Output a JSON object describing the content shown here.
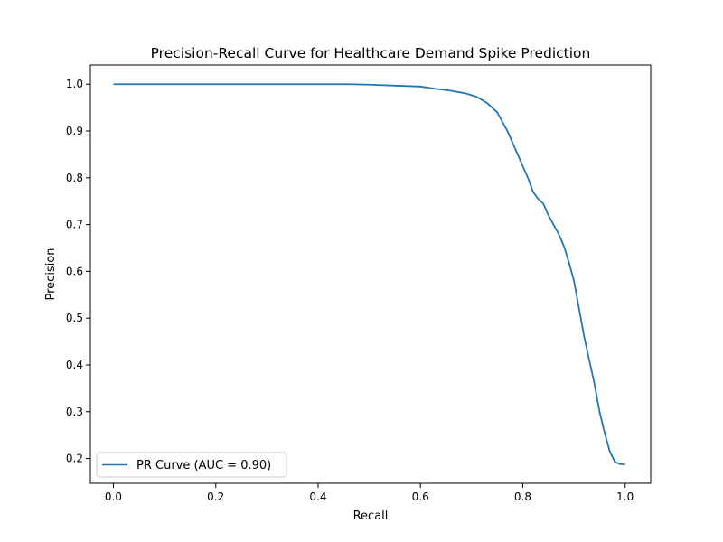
{
  "chart_data": {
    "type": "line",
    "title": "Precision-Recall Curve for Healthcare Demand Spike Prediction",
    "xlabel": "Recall",
    "ylabel": "Precision",
    "xlim": [
      -0.045,
      1.05
    ],
    "ylim": [
      0.147,
      1.041
    ],
    "x_ticks": [
      0.0,
      0.2,
      0.4,
      0.6,
      0.8,
      1.0
    ],
    "y_ticks": [
      0.2,
      0.3,
      0.4,
      0.5,
      0.6,
      0.7,
      0.8,
      0.9,
      1.0
    ],
    "x_tick_labels": [
      "0.0",
      "0.2",
      "0.4",
      "0.6",
      "0.8",
      "1.0"
    ],
    "y_tick_labels": [
      "0.2",
      "0.3",
      "0.4",
      "0.5",
      "0.6",
      "0.7",
      "0.8",
      "0.9",
      "1.0"
    ],
    "grid": false,
    "legend": {
      "position": "lower-left"
    },
    "series": [
      {
        "name": "PR Curve (AUC = 0.90)",
        "color": "#1f77b4",
        "x": [
          0.0,
          0.1,
          0.2,
          0.3,
          0.4,
          0.46,
          0.5,
          0.55,
          0.6,
          0.63,
          0.66,
          0.69,
          0.71,
          0.73,
          0.75,
          0.76,
          0.77,
          0.78,
          0.79,
          0.8,
          0.81,
          0.82,
          0.83,
          0.84,
          0.85,
          0.86,
          0.87,
          0.88,
          0.89,
          0.9,
          0.91,
          0.92,
          0.93,
          0.94,
          0.95,
          0.96,
          0.97,
          0.98,
          0.99,
          1.0
        ],
        "y": [
          1.0,
          1.0,
          1.0,
          1.0,
          1.0,
          1.0,
          0.999,
          0.997,
          0.995,
          0.99,
          0.986,
          0.98,
          0.973,
          0.96,
          0.94,
          0.92,
          0.9,
          0.875,
          0.85,
          0.825,
          0.8,
          0.77,
          0.755,
          0.745,
          0.72,
          0.7,
          0.68,
          0.655,
          0.62,
          0.58,
          0.52,
          0.46,
          0.41,
          0.36,
          0.3,
          0.255,
          0.215,
          0.193,
          0.188,
          0.187
        ]
      }
    ]
  }
}
